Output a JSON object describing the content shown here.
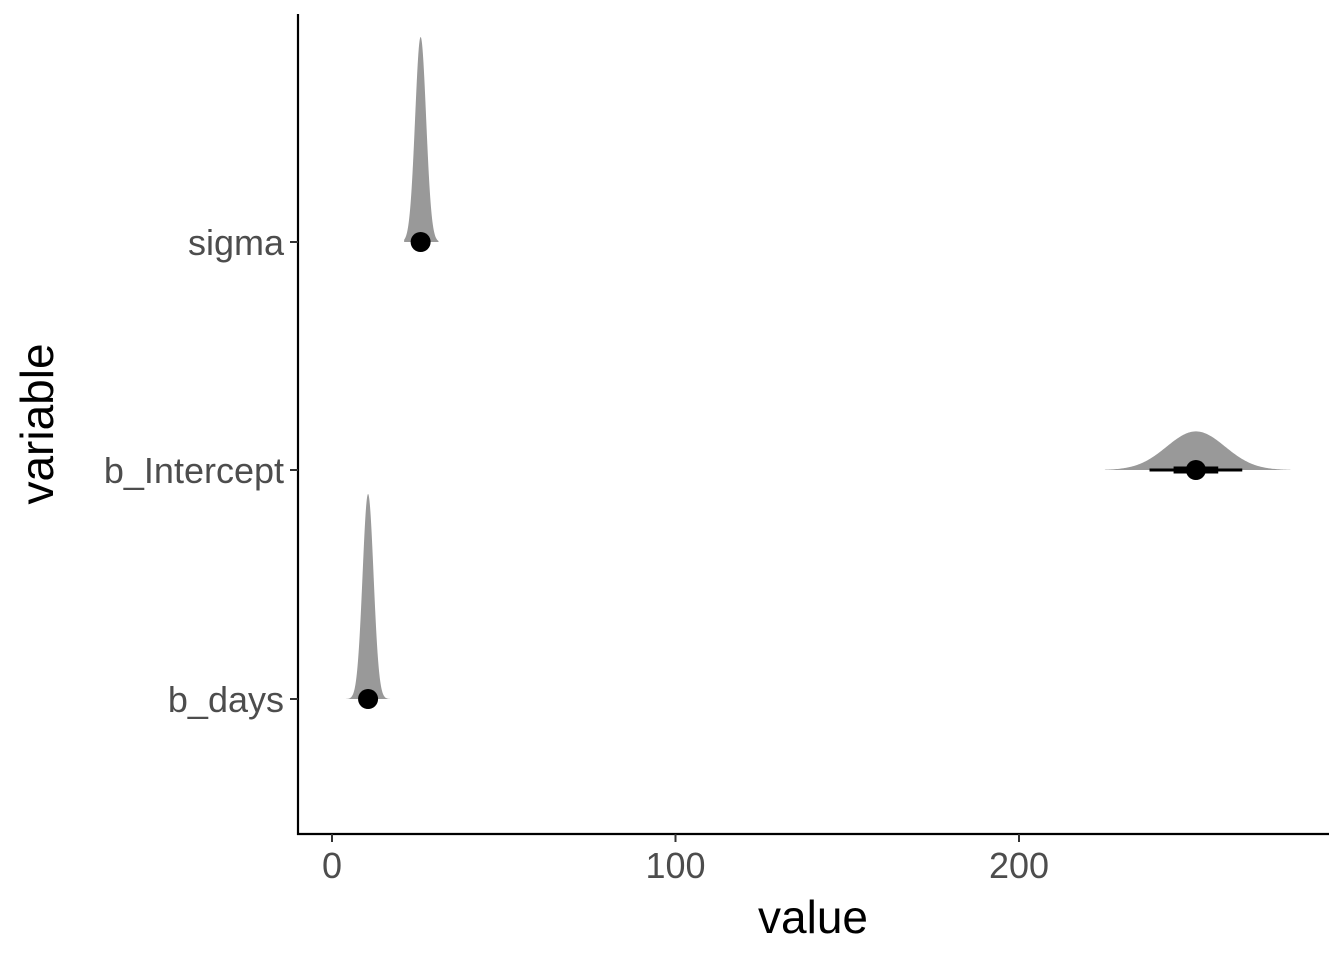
{
  "chart_data": {
    "type": "halfeye",
    "xlabel": "value",
    "ylabel": "variable",
    "xlim": [
      -10,
      290
    ],
    "x_ticks": [
      0,
      100,
      200
    ],
    "x_tick_labels": [
      "0",
      "100",
      "200"
    ],
    "categories": [
      "b_days",
      "b_Intercept",
      "sigma"
    ],
    "distributions": [
      {
        "variable": "b_days",
        "point": 10.5,
        "mean": 10.5,
        "sd": 1.6,
        "range": [
          4,
          18
        ],
        "interval_66": [
          9.7,
          11.3
        ],
        "interval_95": [
          8.5,
          12.5
        ]
      },
      {
        "variable": "b_Intercept",
        "point": 251.5,
        "mean": 251.5,
        "sd": 8.5,
        "range": [
          225,
          279
        ],
        "interval_66": [
          245,
          258
        ],
        "interval_95": [
          238,
          265
        ]
      },
      {
        "variable": "sigma",
        "point": 25.8,
        "mean": 25.8,
        "sd": 1.6,
        "range": [
          21,
          31
        ],
        "interval_66": [
          25.1,
          26.5
        ],
        "interval_95": [
          24.0,
          27.8
        ]
      }
    ],
    "grid": false,
    "legend": "none",
    "colors": {
      "density": "#999999",
      "point_interval": "#000000",
      "axis": "#000000",
      "tick_text": "#4d4d4d"
    }
  }
}
